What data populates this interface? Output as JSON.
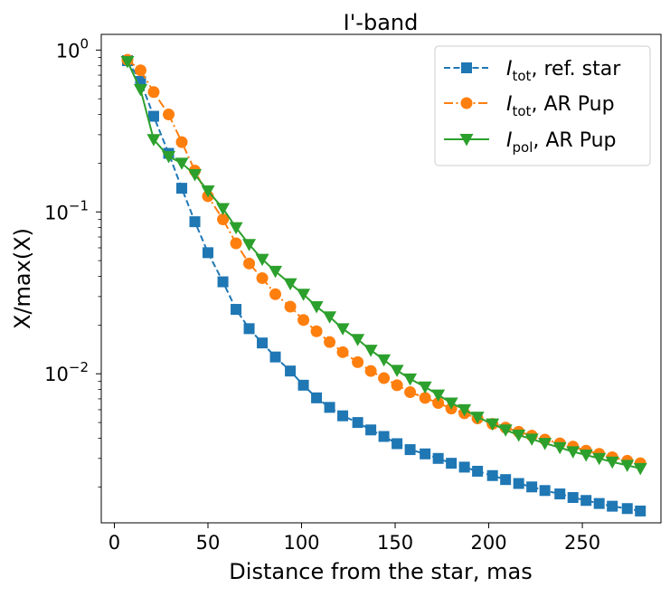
{
  "chart_data": {
    "type": "line",
    "title": "I'-band",
    "xlabel": "Distance from the star, mas",
    "ylabel": "X/max(X)",
    "xscale": "linear",
    "yscale": "log",
    "xlim": [
      -7,
      292
    ],
    "ylim": [
      0.0012,
      1.25
    ],
    "x_ticks": [
      0,
      50,
      100,
      150,
      200,
      250
    ],
    "y_ticks": [
      {
        "value": 1,
        "base": "10",
        "exp": "0"
      },
      {
        "value": 0.1,
        "base": "10",
        "exp": "−1"
      },
      {
        "value": 0.01,
        "base": "10",
        "exp": "−2"
      }
    ],
    "legend_position": "top-right",
    "x": [
      7,
      14,
      21,
      29,
      36,
      43,
      50,
      58,
      65,
      72,
      79,
      86,
      94,
      101,
      108,
      115,
      122,
      130,
      137,
      144,
      151,
      158,
      166,
      173,
      180,
      187,
      194,
      202,
      209,
      216,
      223,
      230,
      238,
      245,
      252,
      259,
      266,
      274,
      281
    ],
    "series": [
      {
        "name": "ref. star",
        "label_main": "I",
        "label_sub": "tot",
        "label_rest": ", ref. star",
        "color": "#1f77b4",
        "marker": "square",
        "linestyle": "dashed",
        "values": [
          0.86,
          0.64,
          0.39,
          0.23,
          0.14,
          0.087,
          0.056,
          0.037,
          0.025,
          0.019,
          0.0155,
          0.0127,
          0.0104,
          0.0085,
          0.0071,
          0.0062,
          0.0055,
          0.005,
          0.0045,
          0.0041,
          0.0037,
          0.0034,
          0.0032,
          0.003,
          0.0028,
          0.00265,
          0.0025,
          0.00235,
          0.00222,
          0.0021,
          0.002,
          0.0019,
          0.00181,
          0.00172,
          0.00165,
          0.00158,
          0.00152,
          0.00147,
          0.00142
        ]
      },
      {
        "name": "I_tot AR Pup",
        "label_main": "I",
        "label_sub": "tot",
        "label_rest": ", AR Pup",
        "color": "#ff7f0e",
        "marker": "circle",
        "linestyle": "dashdot",
        "values": [
          0.87,
          0.75,
          0.55,
          0.4,
          0.27,
          0.18,
          0.125,
          0.09,
          0.064,
          0.048,
          0.039,
          0.031,
          0.026,
          0.0215,
          0.0183,
          0.0157,
          0.0136,
          0.0118,
          0.0104,
          0.0094,
          0.0085,
          0.0077,
          0.0071,
          0.0066,
          0.0061,
          0.0057,
          0.0053,
          0.0049,
          0.00465,
          0.00438,
          0.00415,
          0.00392,
          0.00372,
          0.00355,
          0.00335,
          0.0032,
          0.00305,
          0.0029,
          0.0028
        ]
      },
      {
        "name": "I_pol AR Pup",
        "label_main": "I",
        "label_sub": "pol",
        "label_rest": ", AR Pup",
        "color": "#2ca02c",
        "marker": "triangle-down",
        "linestyle": "solid",
        "values": [
          0.85,
          0.57,
          0.28,
          0.22,
          0.2,
          0.17,
          0.135,
          0.105,
          0.08,
          0.063,
          0.051,
          0.043,
          0.036,
          0.031,
          0.026,
          0.0225,
          0.019,
          0.0163,
          0.014,
          0.0122,
          0.0105,
          0.0093,
          0.0083,
          0.0074,
          0.0066,
          0.006,
          0.0054,
          0.0049,
          0.0045,
          0.00418,
          0.00395,
          0.00372,
          0.0035,
          0.0033,
          0.00315,
          0.003,
          0.00285,
          0.00272,
          0.0026
        ]
      }
    ]
  }
}
